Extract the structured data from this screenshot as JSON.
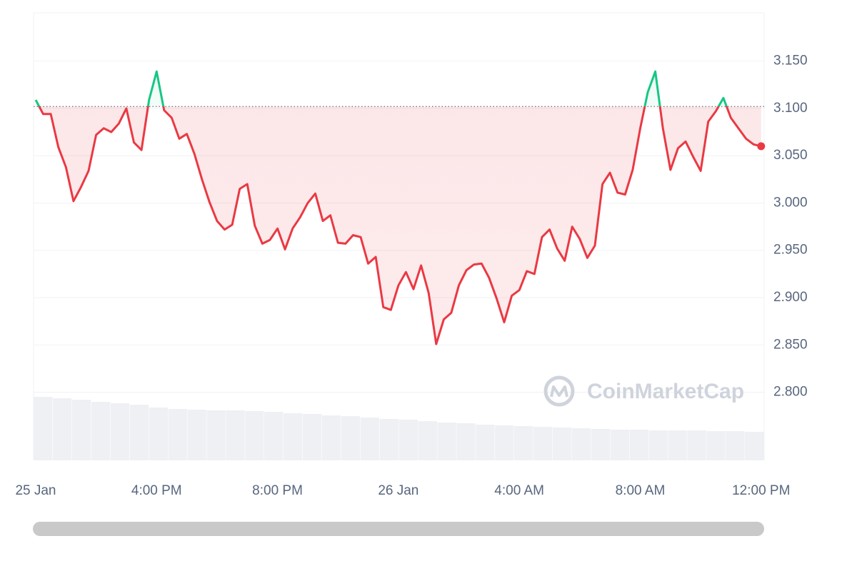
{
  "chart_data": {
    "type": "line",
    "watermark": "CoinMarketCap",
    "x": [
      12.0,
      12.25,
      12.5,
      12.75,
      13.0,
      13.25,
      13.5,
      13.75,
      14.0,
      14.25,
      14.5,
      14.75,
      15.0,
      15.25,
      15.5,
      15.75,
      16.0,
      16.25,
      16.5,
      16.75,
      17.0,
      17.25,
      17.5,
      17.75,
      18.0,
      18.25,
      18.5,
      18.75,
      19.0,
      19.25,
      19.5,
      19.75,
      20.0,
      20.25,
      20.5,
      20.75,
      21.0,
      21.25,
      21.5,
      21.75,
      22.0,
      22.25,
      22.5,
      22.75,
      23.0,
      23.25,
      23.5,
      23.75,
      24.0,
      24.25,
      24.5,
      24.75,
      25.0,
      25.25,
      25.5,
      25.75,
      26.0,
      26.25,
      26.5,
      26.75,
      27.0,
      27.25,
      27.5,
      27.75,
      28.0,
      28.25,
      28.5,
      28.75,
      29.0,
      29.25,
      29.5,
      29.75,
      30.0,
      30.25,
      30.5,
      30.75,
      31.0,
      31.25,
      31.5,
      31.75,
      32.0,
      32.25,
      32.5,
      32.75,
      33.0,
      33.25,
      33.5,
      33.75,
      34.0,
      34.25,
      34.5,
      34.75,
      35.0,
      35.25,
      35.5,
      35.75,
      36.0
    ],
    "series": [
      {
        "color": "#ea3943",
        "up_color": "#16c784",
        "values": [
          3.109,
          3.094,
          3.094,
          3.059,
          3.038,
          3.002,
          3.017,
          3.034,
          3.072,
          3.079,
          3.075,
          3.084,
          3.1,
          3.064,
          3.056,
          3.109,
          3.139,
          3.098,
          3.09,
          3.068,
          3.073,
          3.052,
          3.025,
          3.001,
          2.981,
          2.972,
          2.977,
          3.015,
          3.02,
          2.976,
          2.957,
          2.961,
          2.973,
          2.951,
          2.973,
          2.985,
          3.0,
          3.01,
          2.981,
          2.987,
          2.958,
          2.957,
          2.966,
          2.964,
          2.936,
          2.943,
          2.89,
          2.887,
          2.913,
          2.927,
          2.909,
          2.934,
          2.905,
          2.851,
          2.877,
          2.884,
          2.913,
          2.929,
          2.935,
          2.936,
          2.921,
          2.899,
          2.874,
          2.902,
          2.908,
          2.928,
          2.925,
          2.964,
          2.972,
          2.952,
          2.939,
          2.975,
          2.962,
          2.942,
          2.955,
          3.02,
          3.032,
          3.011,
          3.009,
          3.035,
          3.079,
          3.117,
          3.139,
          3.079,
          3.035,
          3.058,
          3.065,
          3.049,
          3.034,
          3.086,
          3.097,
          3.111,
          3.09,
          3.079,
          3.068,
          3.062,
          3.06
        ]
      }
    ],
    "baseline": 3.102,
    "volume": {
      "color": "#eef0f4",
      "values": [
        89,
        87,
        85,
        82,
        80,
        78,
        74,
        72,
        71,
        70,
        70,
        69,
        68,
        66,
        65,
        63,
        62,
        60,
        58,
        57,
        55,
        53,
        52,
        50,
        49,
        48,
        47,
        46,
        45,
        44,
        43,
        43,
        42,
        42,
        42,
        41,
        41,
        40
      ]
    },
    "xlim": [
      11.93,
      36.1
    ],
    "xticks": [
      {
        "value": 12,
        "label": "25 Jan"
      },
      {
        "value": 16,
        "label": "4:00 PM"
      },
      {
        "value": 20,
        "label": "8:00 PM"
      },
      {
        "value": 24,
        "label": "26 Jan"
      },
      {
        "value": 28,
        "label": "4:00 AM"
      },
      {
        "value": 32,
        "label": "8:00 AM"
      },
      {
        "value": 36,
        "label": "12:00 PM"
      }
    ],
    "ylim": [
      2.728,
      3.201
    ],
    "yticks": [
      {
        "value": 2.8,
        "label": "2.800"
      },
      {
        "value": 2.85,
        "label": "2.850"
      },
      {
        "value": 2.9,
        "label": "2.900"
      },
      {
        "value": 2.95,
        "label": "2.950"
      },
      {
        "value": 3.0,
        "label": "3.000"
      },
      {
        "value": 3.05,
        "label": "3.050"
      },
      {
        "value": 3.1,
        "label": "3.100"
      },
      {
        "value": 3.15,
        "label": "3.150"
      }
    ],
    "grid": true
  }
}
